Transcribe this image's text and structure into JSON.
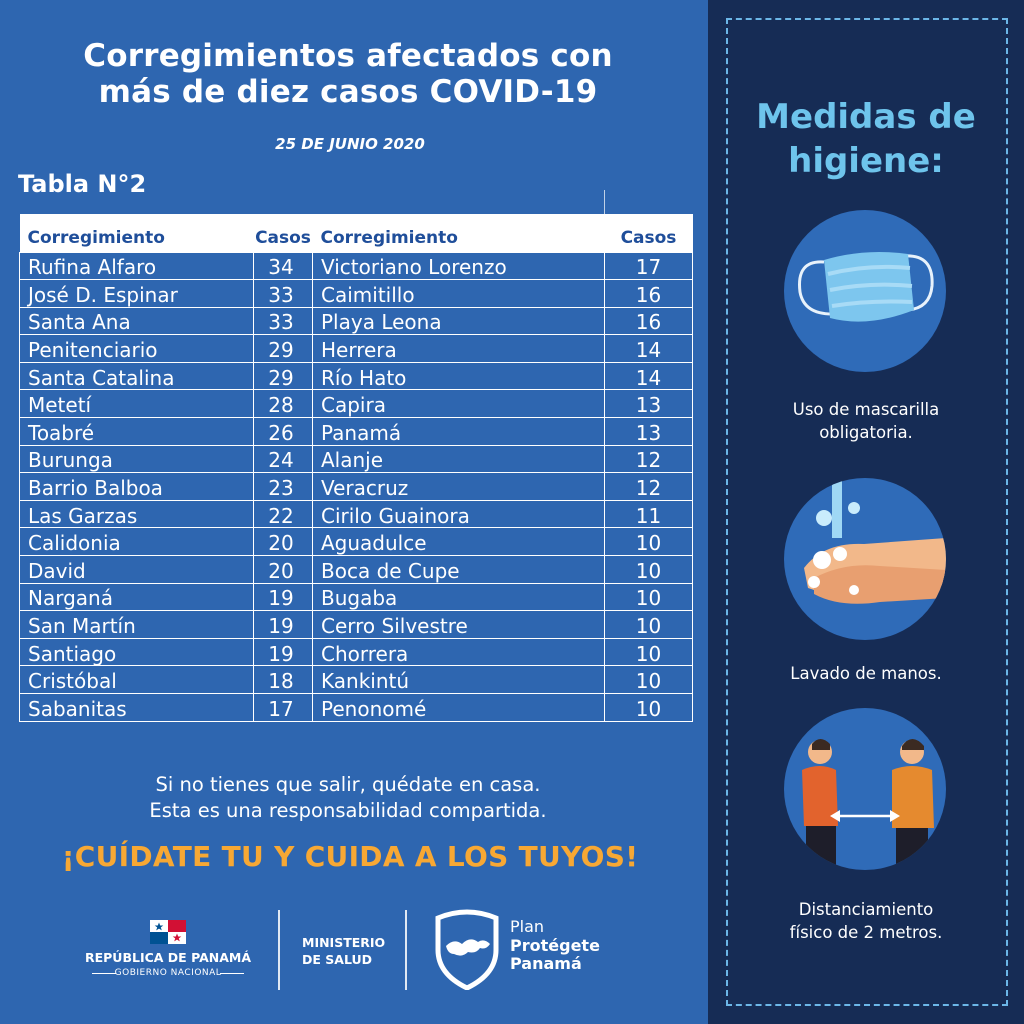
{
  "header": {
    "title_line1": "Corregimientos afectados con",
    "title_line2": "más de diez casos COVID-19",
    "date": "25 DE JUNIO 2020",
    "table_label": "Tabla N°2"
  },
  "table": {
    "headers": [
      "Corregimiento",
      "Casos",
      "Corregimiento",
      "Casos"
    ],
    "rows": [
      {
        "c1": "Rufina Alfaro",
        "n1": "34",
        "c2": "Victoriano Lorenzo",
        "n2": "17"
      },
      {
        "c1": "José D. Espinar",
        "n1": "33",
        "c2": "Caimitillo",
        "n2": "16"
      },
      {
        "c1": "Santa Ana",
        "n1": "33",
        "c2": "Playa Leona",
        "n2": "16"
      },
      {
        "c1": "Penitenciario",
        "n1": "29",
        "c2": "Herrera",
        "n2": "14"
      },
      {
        "c1": "Santa Catalina",
        "n1": "29",
        "c2": "Río Hato",
        "n2": "14"
      },
      {
        "c1": "Metetí",
        "n1": "28",
        "c2": "Capira",
        "n2": "13"
      },
      {
        "c1": "Toabré",
        "n1": "26",
        "c2": "Panamá",
        "n2": "13"
      },
      {
        "c1": "Burunga",
        "n1": "24",
        "c2": "Alanje",
        "n2": "12"
      },
      {
        "c1": "Barrio Balboa",
        "n1": "23",
        "c2": "Veracruz",
        "n2": "12"
      },
      {
        "c1": "Las Garzas",
        "n1": "22",
        "c2": "Cirilo Guainora",
        "n2": "11"
      },
      {
        "c1": "Calidonia",
        "n1": "20",
        "c2": "Aguadulce",
        "n2": "10"
      },
      {
        "c1": "David",
        "n1": "20",
        "c2": "Boca de Cupe",
        "n2": "10"
      },
      {
        "c1": "Narganá",
        "n1": "19",
        "c2": "Bugaba",
        "n2": "10"
      },
      {
        "c1": "San Martín",
        "n1": "19",
        "c2": "Cerro Silvestre",
        "n2": "10"
      },
      {
        "c1": "Santiago",
        "n1": "19",
        "c2": "Chorrera",
        "n2": "10"
      },
      {
        "c1": "Cristóbal",
        "n1": "18",
        "c2": "Kankintú",
        "n2": "10"
      },
      {
        "c1": "Sabanitas",
        "n1": "17",
        "c2": "Penonomé",
        "n2": "10"
      }
    ]
  },
  "message": {
    "line1": "Si no tienes que salir, quédate en casa.",
    "line2": "Esta es una responsabilidad compartida.",
    "slogan": "¡CUÍDATE TU Y CUIDA A LOS TUYOS!"
  },
  "footer": {
    "republic": "REPÚBLICA DE PANAMÁ",
    "government": "GOBIERNO NACIONAL",
    "ministry_line1": "MINISTERIO",
    "ministry_line2": "DE SALUD",
    "plan_line1": "Plan",
    "plan_line2": "Protégete",
    "plan_line3": "Panamá"
  },
  "sidebar": {
    "title_line1": "Medidas de",
    "title_line2": "higiene:",
    "measures": [
      {
        "icon": "face-mask-icon",
        "line1": "Uso de mascarilla",
        "line2": "obligatoria."
      },
      {
        "icon": "hand-washing-icon",
        "line1": "Lavado de manos.",
        "line2": ""
      },
      {
        "icon": "social-distancing-icon",
        "line1": "Distanciamiento",
        "line2": "físico de 2 metros."
      }
    ]
  },
  "colors": {
    "left_bg": "#2e66b0",
    "right_bg": "#162c55",
    "accent_orange": "#f7a834",
    "accent_cyan": "#6ec4ec",
    "header_text": "#1f4e9a"
  }
}
